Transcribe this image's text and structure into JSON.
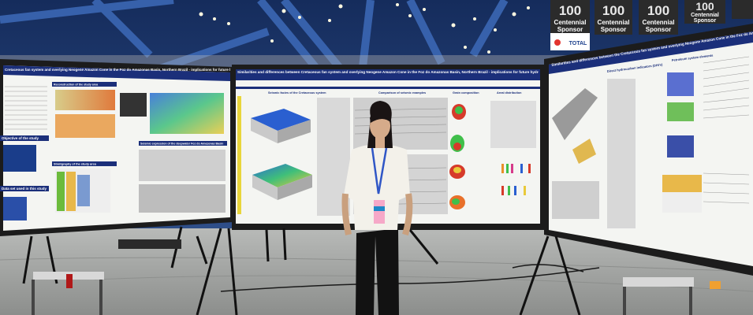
{
  "banners": [
    {
      "number": "100",
      "line1": "Centennial",
      "line2": "Sponsor"
    },
    {
      "number": "100",
      "line1": "Centennial",
      "line2": "Sponsor"
    },
    {
      "number": "100",
      "line1": "Centennial",
      "line2": "Sponsor"
    },
    {
      "number": "100",
      "line1": "Centennial",
      "line2": "Sponsor"
    }
  ],
  "total_logo": "TOTAL",
  "left_poster": {
    "title": "Cretaceous fan system and overlying Neogene Amazon Cone in the Foz do Amazonas Basin, Northern Brazil - implications for future hydrocarbon exploration",
    "sections": [
      "Reconstruction of the study area",
      "Seismic expression of the deepwater Foz do Amazonas Basin",
      "Objective of the study",
      "Stratigraphy of the study area",
      "Data set used in this study"
    ]
  },
  "center_poster": {
    "title": "Similarities and differences between Cretaceous fan system and overlying Neogene Amazon Cone in the Foz do Amazonas Basin, Northern Brazil - implications for future hydrocarbon exploration",
    "sections": [
      "Seismic facies of the Cretaceous system",
      "Comparison of seismic examples",
      "Grain composition",
      "Areal distribution"
    ]
  },
  "right_poster": {
    "title": "Similarities and differences between the Cretaceous fan system and overlying Neogene Amazon Cone in the Foz do Amazonas Basin, Northern Brazil - implications for",
    "sections": [
      "Direct hydrocarbon indicators (DHI's)",
      "Petroleum system elements"
    ]
  },
  "colors": {
    "poster_header": "#1b2f7a",
    "poster_bg": "#f4f5f2",
    "board_frame": "#1c1c1c",
    "floor": "#9a9c9a",
    "ceiling": "#1e3f7a"
  }
}
